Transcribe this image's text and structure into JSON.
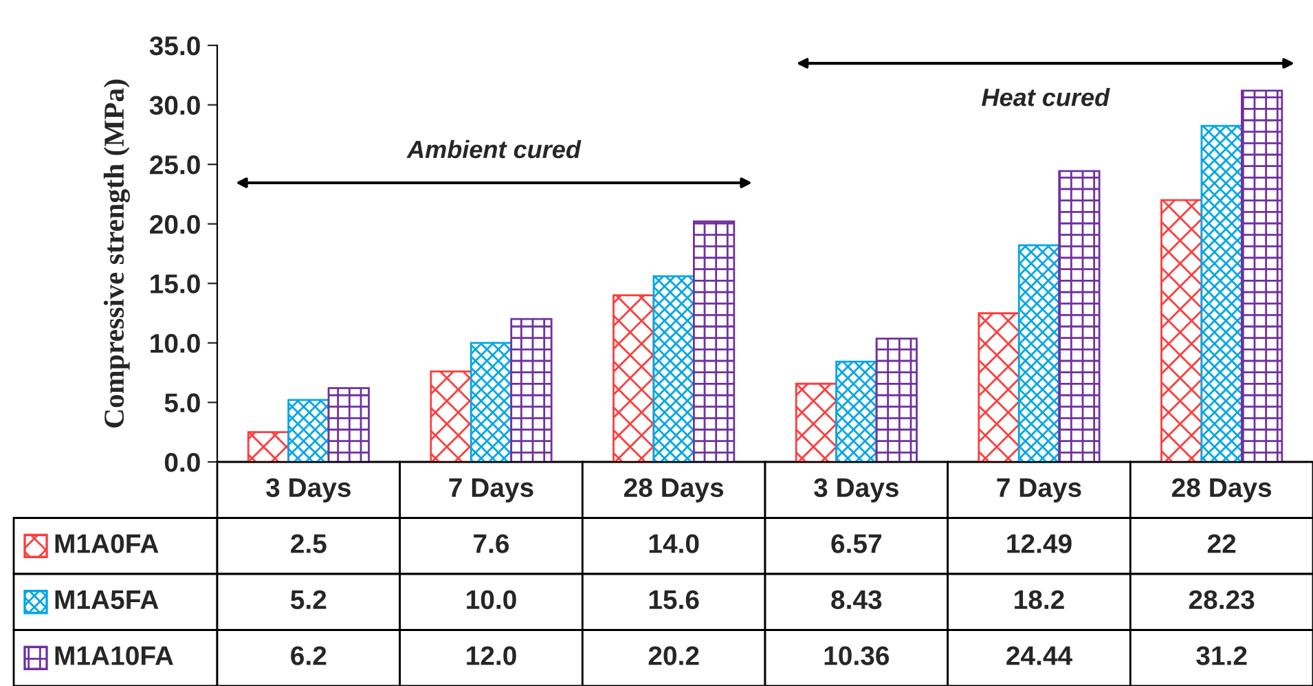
{
  "chart_data": {
    "type": "bar",
    "ylabel": "Compressive strength (MPa)",
    "categories": [
      "3 Days",
      "7 Days",
      "28 Days",
      "3 Days",
      "7 Days",
      "28 Days"
    ],
    "series": [
      {
        "name": "M1A0FA",
        "color": "#ff3b3b",
        "values": [
          2.5,
          7.6,
          14.0,
          6.57,
          12.49,
          22
        ],
        "value_labels": [
          "2.5",
          "7.6",
          "14.0",
          "6.57",
          "12.49",
          "22"
        ]
      },
      {
        "name": "M1A5FA",
        "color": "#00a6e6",
        "values": [
          5.2,
          10.0,
          15.6,
          8.43,
          18.2,
          28.23
        ],
        "value_labels": [
          "5.2",
          "10.0",
          "15.6",
          "8.43",
          "18.2",
          "28.23"
        ]
      },
      {
        "name": "M1A10FA",
        "color": "#7030a0",
        "values": [
          6.2,
          12.0,
          20.2,
          10.36,
          24.44,
          31.2
        ],
        "value_labels": [
          "6.2",
          "12.0",
          "20.2",
          "10.36",
          "24.44",
          "31.2"
        ]
      }
    ],
    "ylim": [
      0,
      35
    ],
    "yticks": [
      {
        "value": 0,
        "label": "0.0"
      },
      {
        "value": 5,
        "label": "5.0"
      },
      {
        "value": 10,
        "label": "10.0"
      },
      {
        "value": 15,
        "label": "15.0"
      },
      {
        "value": 20,
        "label": "20.0"
      },
      {
        "value": 25,
        "label": "25.0"
      },
      {
        "value": 30,
        "label": "30.0"
      },
      {
        "value": 35,
        "label": "35.0"
      }
    ],
    "annotations": [
      "Ambient cured",
      "Heat cured"
    ],
    "grid": false,
    "legend": "bottom"
  }
}
